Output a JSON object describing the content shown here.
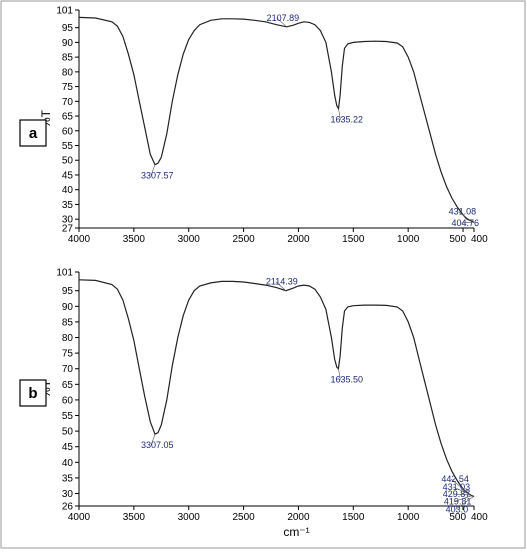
{
  "chart_data": [
    {
      "type": "line",
      "panel_label": "a",
      "ylabel": "%T",
      "xlabel": "",
      "xlim": [
        4000,
        400
      ],
      "x_ticks": [
        4000,
        3500,
        3000,
        2500,
        2000,
        1500,
        1000,
        500,
        400
      ],
      "x_tick_labels": [
        "4000",
        "3500",
        "3000",
        "2500",
        "2000",
        "1500",
        "1000",
        "500",
        "400"
      ],
      "ylim": [
        27,
        101
      ],
      "y_ticks": [
        101,
        95,
        90,
        85,
        80,
        75,
        70,
        65,
        60,
        55,
        50,
        45,
        40,
        35,
        30,
        27
      ],
      "series": [
        {
          "x": [
            4000,
            3850,
            3700,
            3650,
            3600,
            3550,
            3500,
            3450,
            3400,
            3350,
            3307.57,
            3280,
            3250,
            3200,
            3150,
            3100,
            3050,
            3000,
            2950,
            2900,
            2800,
            2700,
            2600,
            2500,
            2400,
            2300,
            2200,
            2107.89,
            2050,
            2000,
            1950,
            1900,
            1850,
            1800,
            1750,
            1700,
            1670,
            1650,
            1635.22,
            1620,
            1600,
            1580,
            1550,
            1500,
            1400,
            1300,
            1200,
            1100,
            1050,
            1000,
            950,
            900,
            850,
            800,
            750,
            700,
            650,
            600,
            550,
            500,
            470,
            450,
            431.08,
            420,
            404.76,
            400
          ],
          "y": [
            98.5,
            98.3,
            97,
            95.5,
            92,
            86,
            79,
            70,
            61,
            52,
            48.5,
            49,
            51,
            59,
            70,
            79,
            86,
            91,
            94,
            96,
            97.5,
            98,
            98,
            97.9,
            97.5,
            97,
            96,
            95.3,
            95.8,
            96.5,
            97,
            96.8,
            96,
            94,
            90,
            80,
            72,
            68.5,
            67.5,
            72,
            82,
            88,
            89.5,
            90,
            90.3,
            90.4,
            90.3,
            89.8,
            88.5,
            85,
            80,
            73,
            66,
            59,
            52,
            46,
            41,
            37,
            34,
            31.5,
            30.2,
            29.8,
            29.5,
            29.2,
            29,
            29
          ]
        }
      ],
      "annotations": [
        {
          "label": "3307.57",
          "x": 3307.57,
          "y": 48.5
        },
        {
          "label": "2107.89",
          "x": 2107.89,
          "y": 95.3
        },
        {
          "label": "1635.22",
          "x": 1635.22,
          "y": 67.5
        },
        {
          "label": "431.08",
          "x": 431.08,
          "y": 29.5
        },
        {
          "label": "404.76",
          "x": 404.76,
          "y": 29
        }
      ]
    },
    {
      "type": "line",
      "panel_label": "b",
      "ylabel": "%T",
      "xlabel": "cm⁻¹",
      "xlim": [
        4000,
        400
      ],
      "x_ticks": [
        4000,
        3500,
        3000,
        2500,
        2000,
        1500,
        1000,
        500,
        400
      ],
      "x_tick_labels": [
        "4000",
        "3500",
        "3000",
        "2500",
        "2000",
        "1500",
        "1000",
        "500",
        "400"
      ],
      "ylim": [
        26,
        101
      ],
      "y_ticks": [
        101,
        95,
        90,
        85,
        80,
        75,
        70,
        65,
        60,
        55,
        50,
        45,
        40,
        35,
        30,
        26
      ],
      "series": [
        {
          "x": [
            4000,
            3850,
            3700,
            3650,
            3600,
            3550,
            3500,
            3450,
            3400,
            3350,
            3307.05,
            3280,
            3250,
            3200,
            3150,
            3100,
            3050,
            3000,
            2950,
            2900,
            2800,
            2700,
            2600,
            2500,
            2400,
            2300,
            2200,
            2114.39,
            2050,
            2000,
            1950,
            1900,
            1850,
            1800,
            1750,
            1700,
            1670,
            1650,
            1635.5,
            1620,
            1600,
            1580,
            1550,
            1500,
            1400,
            1300,
            1200,
            1100,
            1050,
            1000,
            950,
            900,
            850,
            800,
            750,
            700,
            650,
            600,
            550,
            500,
            470,
            450,
            442.54,
            431.03,
            429.87,
            419.81,
            403.0,
            400
          ],
          "y": [
            98.5,
            98.3,
            97,
            95.5,
            92,
            86,
            79,
            70,
            61,
            53,
            49,
            49.5,
            52,
            60,
            71,
            80,
            87,
            92,
            95,
            96.5,
            97.5,
            98,
            98,
            97.8,
            97.3,
            96.8,
            96,
            95,
            95.8,
            96.5,
            96.8,
            96.5,
            95.5,
            93,
            89,
            80,
            73,
            70.5,
            70,
            74,
            83,
            88.5,
            89.8,
            90.2,
            90.4,
            90.4,
            90.3,
            89.8,
            88.5,
            85,
            80,
            73,
            66,
            59,
            52,
            46,
            41,
            37,
            34,
            31.5,
            30.5,
            30,
            29.8,
            29.6,
            29.5,
            29.3,
            29.1,
            29
          ]
        }
      ],
      "annotations": [
        {
          "label": "3307.05",
          "x": 3307.05,
          "y": 49
        },
        {
          "label": "2114.39",
          "x": 2114.39,
          "y": 95
        },
        {
          "label": "1635.50",
          "x": 1635.5,
          "y": 70
        },
        {
          "label": "442.54",
          "x": 442.54,
          "y": 29.8
        },
        {
          "label": "431.03",
          "x": 431.03,
          "y": 29.6
        },
        {
          "label": "429.87",
          "x": 429.87,
          "y": 29.5
        },
        {
          "label": "419.81",
          "x": 419.81,
          "y": 29.3
        },
        {
          "label": "403.0",
          "x": 403.0,
          "y": 29.1
        }
      ]
    }
  ]
}
